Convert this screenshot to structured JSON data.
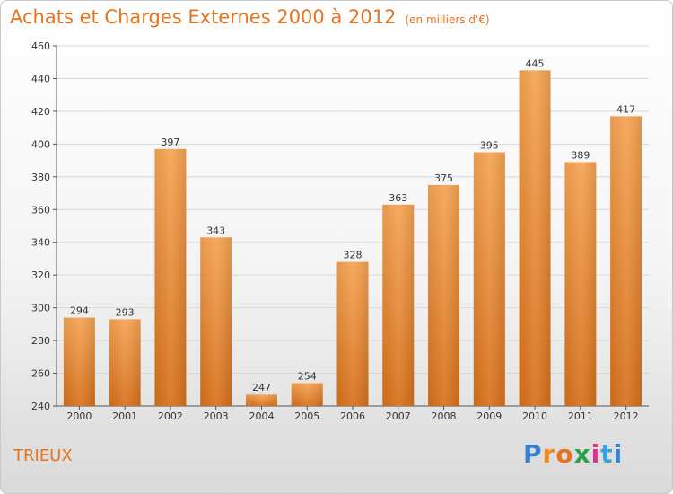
{
  "title": "Achats et Charges Externes 2000 à 2012",
  "unit_note": "(en milliers d'€)",
  "location": "TRIEUX",
  "brand_logo": "Proxiti",
  "colors": {
    "accent": "#e8731f",
    "bar_top": "#f6a453",
    "bar_bottom": "#d7711b",
    "grid": "#d7d7d7"
  },
  "chart_data": {
    "type": "bar",
    "categories": [
      "2000",
      "2001",
      "2002",
      "2003",
      "2004",
      "2005",
      "2006",
      "2007",
      "2008",
      "2009",
      "2010",
      "2011",
      "2012"
    ],
    "values": [
      294,
      293,
      397,
      343,
      247,
      254,
      328,
      363,
      375,
      395,
      445,
      389,
      417
    ],
    "ylim": [
      240,
      460
    ],
    "yticks": [
      240,
      260,
      280,
      300,
      320,
      340,
      360,
      380,
      400,
      420,
      440,
      460
    ],
    "grid": true,
    "xlabel": "",
    "ylabel": ""
  }
}
